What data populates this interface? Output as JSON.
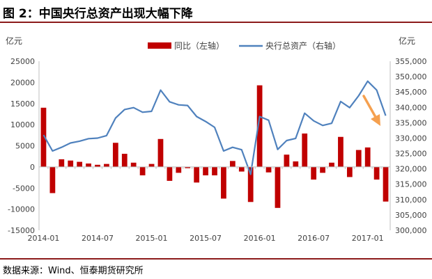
{
  "figure": {
    "title": "图 2：中国央行总资产出现大幅下降",
    "source": "数据来源：Wind、恒泰期货研究所"
  },
  "chart_data": {
    "type": "bar+line",
    "left_unit": "亿元",
    "right_unit": "亿元",
    "y_left": {
      "min": -15000,
      "max": 25000,
      "step": 5000,
      "tick_labels": [
        "-15000",
        "-10000",
        "-5000",
        "0",
        "5000",
        "10000",
        "15000",
        "20000",
        "25000"
      ]
    },
    "y_right": {
      "min": 300000,
      "max": 355000,
      "step": 5000,
      "tick_labels": [
        "300,000",
        "305,000",
        "310,000",
        "315,000",
        "320,000",
        "325,000",
        "330,000",
        "335,000",
        "340,000",
        "345,000",
        "350,000",
        "355,000"
      ]
    },
    "x_tick_labels": [
      {
        "label": "2014-01",
        "index": 0
      },
      {
        "label": "2014-07",
        "index": 6
      },
      {
        "label": "2015-01",
        "index": 12
      },
      {
        "label": "2015-07",
        "index": 18
      },
      {
        "label": "2016-01",
        "index": 24
      },
      {
        "label": "2016-07",
        "index": 30
      },
      {
        "label": "2017-01",
        "index": 36
      }
    ],
    "series": [
      {
        "name": "同比（左轴）",
        "type": "bar",
        "axis": "left",
        "color": "#c00000",
        "values": [
          14000,
          -6200,
          1800,
          1500,
          1200,
          800,
          500,
          700,
          5700,
          3100,
          1000,
          -2000,
          700,
          6600,
          -3300,
          -1400,
          -300,
          -3700,
          -2000,
          -2000,
          -7500,
          1400,
          -1100,
          -8300,
          19300,
          -1300,
          -9700,
          2900,
          1300,
          7900,
          -3000,
          -1400,
          1000,
          7100,
          -2400,
          4000,
          4600,
          -3000,
          -8200
        ]
      },
      {
        "name": "央行总资产（右轴）",
        "type": "line",
        "axis": "right",
        "color": "#4f81bd",
        "values": [
          331000,
          325800,
          327000,
          328400,
          329000,
          329800,
          330000,
          330800,
          336500,
          339300,
          339900,
          338400,
          338700,
          345600,
          341800,
          340800,
          340600,
          337000,
          335400,
          333500,
          325800,
          327000,
          326200,
          318200,
          337000,
          335800,
          326300,
          329200,
          329900,
          338100,
          335600,
          334100,
          334800,
          341900,
          339900,
          343800,
          348500,
          345600,
          337300
        ]
      }
    ],
    "annotation": {
      "type": "arrow",
      "color": "#f5a04f",
      "direction": "down-right"
    },
    "grid": false,
    "legend": "top-center"
  }
}
